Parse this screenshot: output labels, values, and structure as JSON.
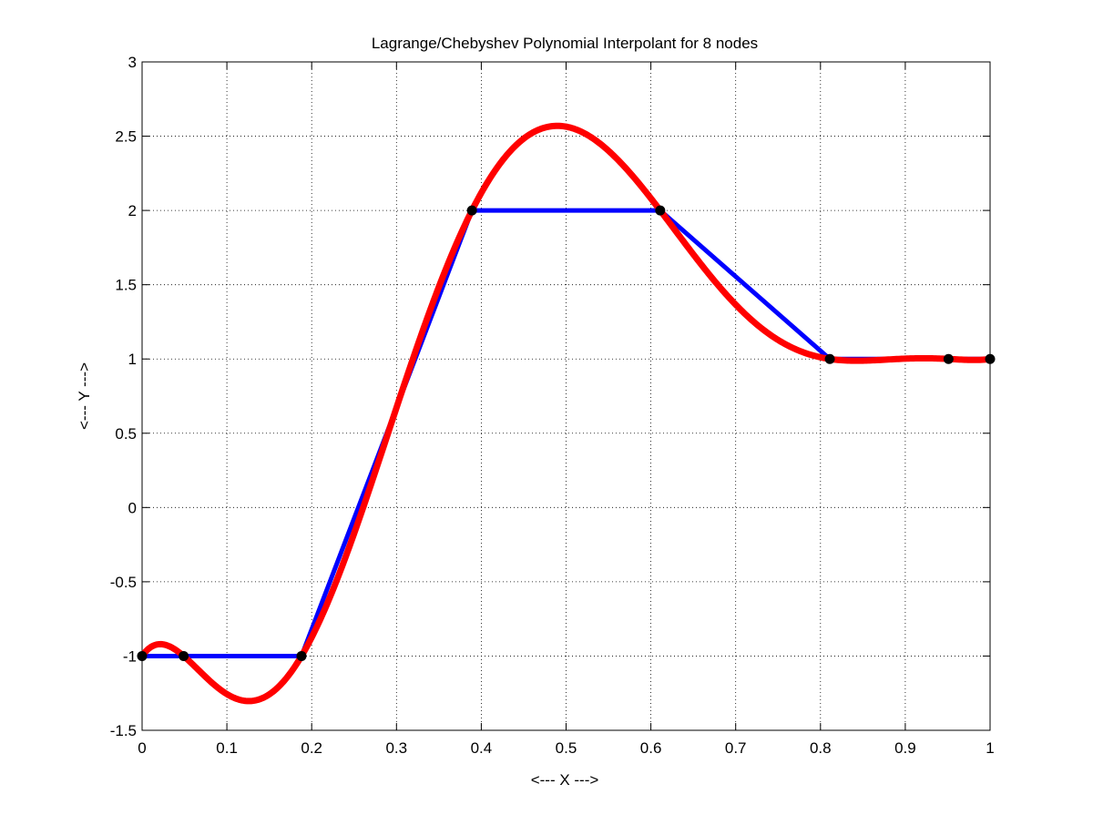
{
  "chart_data": {
    "type": "line",
    "title": "Lagrange/Chebyshev Polynomial Interpolant for 8 nodes",
    "xlabel": "<--- X --->",
    "ylabel": "<--- Y --->",
    "xlim": [
      0,
      1
    ],
    "ylim": [
      -1.5,
      3
    ],
    "grid": true,
    "xticks": [
      0,
      0.1,
      0.2,
      0.3,
      0.4,
      0.5,
      0.6,
      0.7,
      0.8,
      0.9,
      1
    ],
    "xtick_labels": [
      "0",
      "0.1",
      "0.2",
      "0.3",
      "0.4",
      "0.5",
      "0.6",
      "0.7",
      "0.8",
      "0.9",
      "1"
    ],
    "yticks": [
      -1.5,
      -1,
      -0.5,
      0,
      0.5,
      1,
      1.5,
      2,
      2.5,
      3
    ],
    "ytick_labels": [
      "-1.5",
      "-1",
      "-0.5",
      "0",
      "0.5",
      "1",
      "1.5",
      "2",
      "2.5",
      "3"
    ],
    "nodes": {
      "x": [
        0,
        0.049,
        0.188,
        0.389,
        0.611,
        0.811,
        0.951,
        1
      ],
      "y": [
        -1,
        -1,
        -1,
        2,
        2,
        1,
        1,
        1
      ],
      "color": "#000000"
    },
    "series": [
      {
        "style": "piecewise-linear",
        "color": "#0000ff",
        "x": [
          0,
          0.049,
          0.188,
          0.389,
          0.611,
          0.811,
          0.951,
          1
        ],
        "y": [
          -1,
          -1,
          -1,
          2,
          2,
          1,
          1,
          1
        ]
      },
      {
        "style": "polynomial-interpolant",
        "color": "#ff0000",
        "x": [
          0,
          0.049,
          0.188,
          0.389,
          0.611,
          0.811,
          0.951,
          1
        ],
        "y": [
          -1,
          -1,
          -1,
          2,
          2,
          1,
          1,
          1
        ]
      }
    ]
  }
}
